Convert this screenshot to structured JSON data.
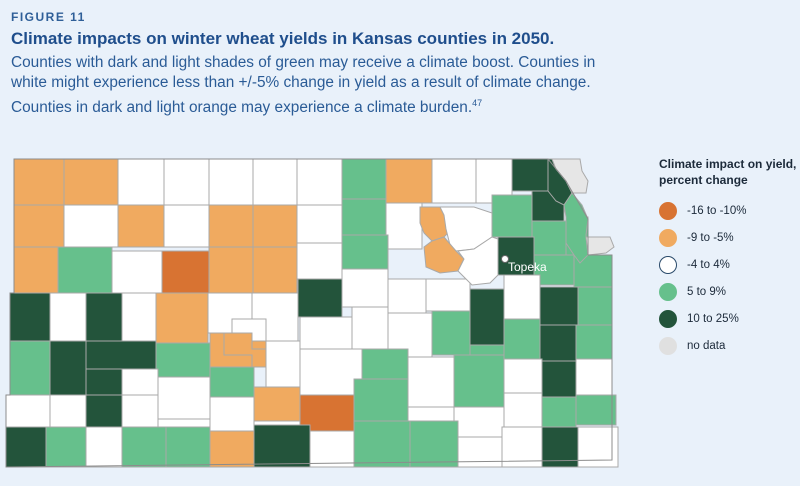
{
  "figure_label": "FIGURE 11",
  "title": "Climate impacts on winter wheat yields in Kansas counties in 2050.",
  "description": "Counties with dark and light shades of green may receive a climate boost. Counties in white might experience less than +/-5% change in yield as a result of climate change. Counties in dark and light orange may experience a climate burden.",
  "footnote": "47",
  "map": {
    "city_label": "Topeka",
    "categories": {
      "dark_orange": "#d87332",
      "light_orange": "#f0aa60",
      "white": "#ffffff",
      "light_green": "#66c08c",
      "dark_green": "#23543b",
      "no_data": "#e6e6e6"
    }
  },
  "legend": {
    "title": "Climate impact on yield, percent change",
    "items": [
      {
        "label": "-16 to -10%",
        "color": "#d87332",
        "border": "#d87332"
      },
      {
        "label": "-9 to -5%",
        "color": "#f0aa60",
        "border": "#f0aa60"
      },
      {
        "label": "-4 to 4%",
        "color": "#ffffff",
        "border": "#2a4a6a"
      },
      {
        "label": "5 to 9%",
        "color": "#66c08c",
        "border": "#66c08c"
      },
      {
        "label": "10 to 25%",
        "color": "#23543b",
        "border": "#23543b"
      },
      {
        "label": "no data",
        "color": "#e0e0e0",
        "border": "#e0e0e0"
      }
    ]
  }
}
